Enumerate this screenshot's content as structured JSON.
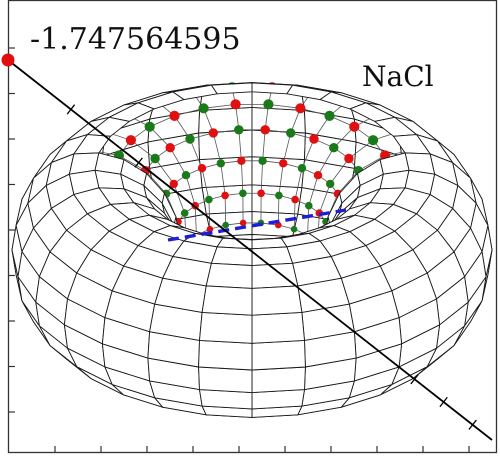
{
  "figure": {
    "value_text": "-1.747564595",
    "compound_text": "NaCl"
  },
  "colors": {
    "background": "#ffffff",
    "frame": "#333333",
    "mesh": "#1a1a1a",
    "ion_a": "#e01010",
    "ion_b": "#1a7a1a",
    "dashed_line": "#1e1ed2",
    "axis_line": "#000000",
    "endpoint": "#e01010"
  },
  "icons": {
    "start_point": "red-circle",
    "torus": "wireframe-torus"
  }
}
